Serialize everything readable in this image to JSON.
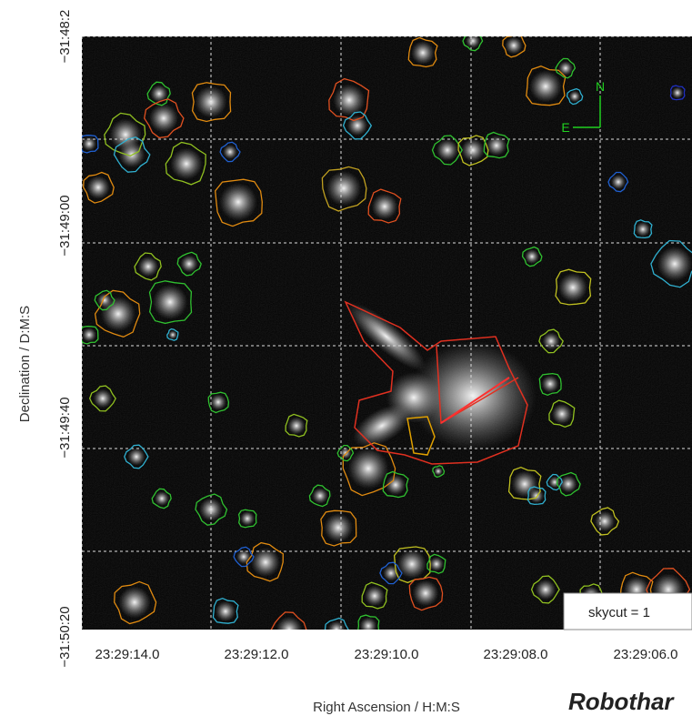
{
  "axes": {
    "x_label": "Right Ascension / H:M:S",
    "y_label": "Declination / D:M:S",
    "x_ticks": [
      "23:29:14.0",
      "23:29:12.0",
      "23:29:10.0",
      "23:29:08.0",
      "23:29:06.0"
    ],
    "y_ticks": [
      "−31:48:2",
      "−31:49:00",
      "−31:49:40",
      "−31:50:20"
    ]
  },
  "compass": {
    "north": "N",
    "east": "E"
  },
  "annotations": {
    "skycut": "skycut = 1",
    "signature": "Robothar"
  }
}
